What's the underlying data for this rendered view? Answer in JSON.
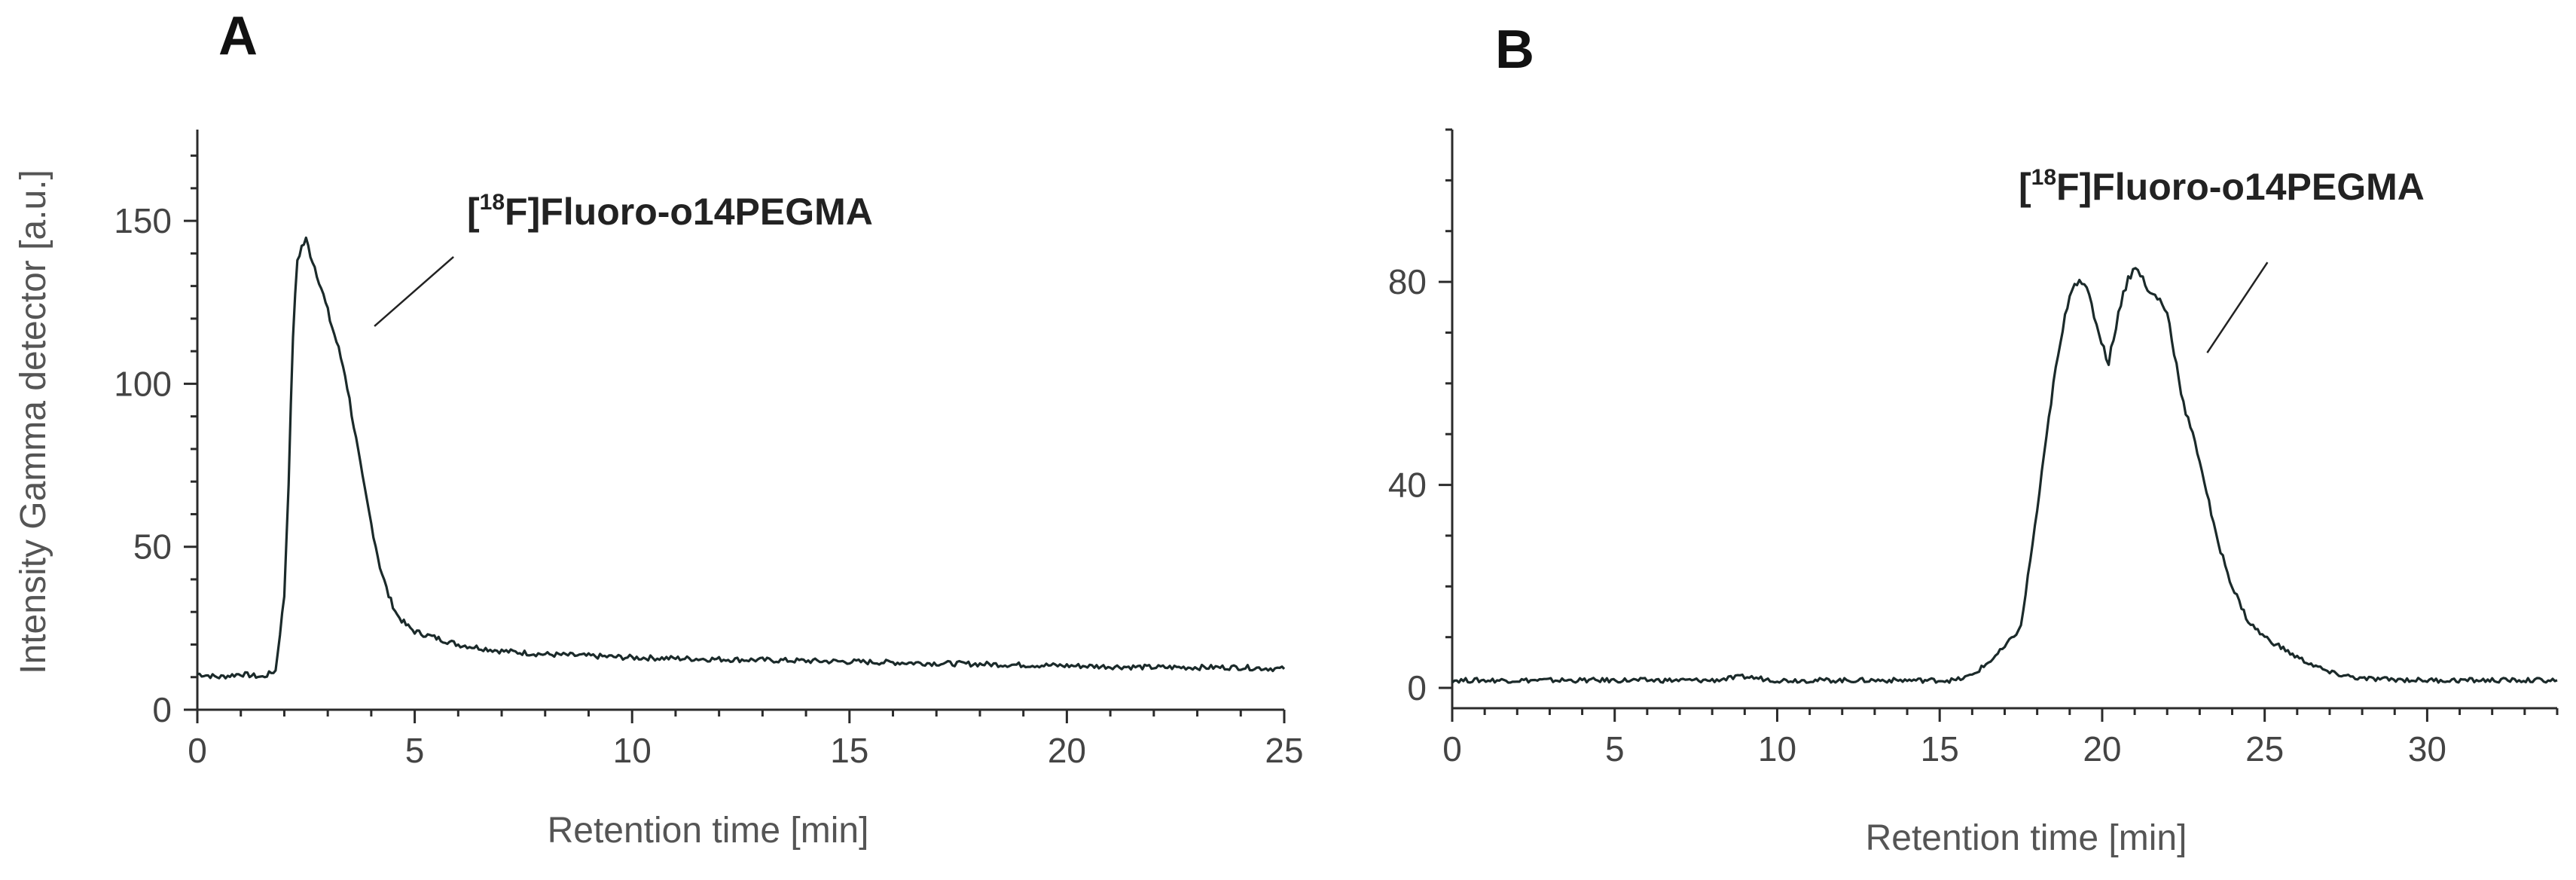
{
  "chart_data": [
    {
      "type": "line",
      "panel_label": "A",
      "xlabel": "Retention time [min]",
      "ylabel": "Intensity Gamma detector [a.u.]",
      "xlim": [
        0,
        25
      ],
      "ylim": [
        0,
        178
      ],
      "x_ticks": [
        0,
        5,
        10,
        15,
        20,
        25
      ],
      "x_tick_labels": [
        "0",
        "5",
        "10",
        "15",
        "20",
        "25"
      ],
      "y_ticks": [
        0,
        50,
        100,
        150
      ],
      "y_tick_labels": [
        "0",
        "50",
        "100",
        "150"
      ],
      "annotation": {
        "pre": "[",
        "sup": "18",
        "post": "F]Fluoro-o14PEGMA",
        "x": 3.9,
        "y": 120
      },
      "series": [
        {
          "color": "#1b2a2a",
          "x": [
            0,
            0.5,
            1.0,
            1.5,
            1.8,
            2.0,
            2.1,
            2.2,
            2.3,
            2.4,
            2.5,
            2.6,
            2.7,
            2.8,
            3.0,
            3.2,
            3.4,
            3.6,
            3.8,
            4.0,
            4.2,
            4.4,
            4.6,
            4.8,
            5.0,
            5.5,
            6.0,
            7.0,
            8.0,
            10.0,
            12.0,
            14.0,
            16.0,
            18.0,
            20.0,
            22.0,
            24.0,
            25.0
          ],
          "y": [
            11,
            10,
            11,
            10,
            12,
            35,
            70,
            115,
            138,
            142,
            144,
            140,
            136,
            132,
            122,
            113,
            103,
            87,
            71,
            57,
            44,
            35,
            29,
            26,
            24,
            22,
            20,
            18,
            17,
            16,
            15.5,
            15,
            14.5,
            14,
            13.5,
            13,
            13,
            12.5
          ]
        }
      ]
    },
    {
      "type": "line",
      "panel_label": "B",
      "xlabel": "Retention time [min]",
      "ylabel": "",
      "xlim": [
        0,
        34
      ],
      "ylim": [
        -4,
        110
      ],
      "x_ticks": [
        0,
        5,
        10,
        15,
        20,
        25,
        30
      ],
      "x_tick_labels": [
        "0",
        "5",
        "10",
        "15",
        "20",
        "25",
        "30"
      ],
      "y_ticks": [
        0,
        40,
        80
      ],
      "y_tick_labels": [
        "0",
        "40",
        "80"
      ],
      "annotation": {
        "pre": "[",
        "sup": "18",
        "post": "F]Fluoro-o14PEGMA",
        "x": 23.0,
        "y": 69
      },
      "series": [
        {
          "color": "#1b2a2a",
          "x": [
            0,
            2,
            4,
            6,
            8,
            9,
            10,
            12,
            14,
            15.5,
            16.0,
            16.5,
            17.0,
            17.5,
            18.0,
            18.5,
            19.0,
            19.3,
            19.6,
            19.9,
            20.2,
            20.5,
            20.8,
            21.1,
            21.4,
            21.7,
            22.0,
            22.5,
            23.0,
            23.5,
            24.0,
            24.5,
            25.0,
            25.5,
            26.0,
            27.0,
            28.0,
            30.0,
            32.0,
            34.0
          ],
          "y": [
            1.5,
            1.5,
            1.5,
            1.5,
            1.5,
            2.2,
            1.5,
            1.5,
            1.5,
            1.5,
            2.5,
            5,
            8,
            12,
            35,
            60,
            78,
            81,
            77,
            70,
            64,
            74,
            81,
            83,
            78,
            77,
            74,
            56,
            45,
            30,
            20,
            13,
            10,
            8,
            6,
            3,
            1.8,
            1.5,
            1.5,
            1.5
          ]
        }
      ]
    }
  ]
}
